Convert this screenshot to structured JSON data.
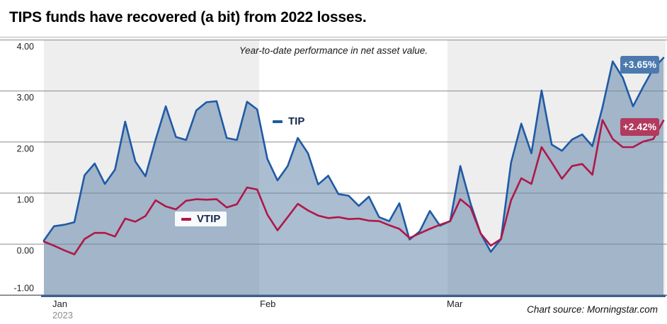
{
  "source_note": "Chart source: Morningstar.com",
  "colors": {
    "tip_line": "#1f5aa5",
    "tip_fill": "rgba(100,134,171,0.55)",
    "vtip_line": "#b01747",
    "tip_badge_bg": "#4d7aae",
    "vtip_badge_bg": "#b23a5e",
    "band_bg": "#eeeeee",
    "gridline": "#8a8a8a",
    "title_rule": "#b3b3b3",
    "axis_line": "#3c5f8c",
    "axis_label": "#222222",
    "year_label": "#8c8c8c",
    "legend_text": "#14294e"
  },
  "chart_data": {
    "type": "area",
    "title": "TIPS funds have recovered (a bit) from 2022 losses.",
    "subtitle": "Year-to-date performance in net asset value.",
    "x_tick_labels": [
      "Jan",
      "Feb",
      "Mar"
    ],
    "x_year_label": "2023",
    "y_tick_labels": [
      "4.00",
      "3.00",
      "2.00",
      "1.00",
      "0.00",
      "-1.00"
    ],
    "y_tick_values": [
      4,
      3,
      2,
      1,
      0,
      -1
    ],
    "ylim": [
      -1,
      4
    ],
    "grid": true,
    "legend_position": "inline",
    "series": [
      {
        "name": "TIP",
        "style": "area",
        "color": "#1f5aa5",
        "end_label": "+3.65%",
        "values": [
          0.07,
          0.35,
          0.38,
          0.43,
          1.35,
          1.58,
          1.18,
          1.46,
          2.4,
          1.62,
          1.33,
          2.05,
          2.7,
          2.1,
          2.04,
          2.62,
          2.78,
          2.8,
          2.08,
          2.04,
          2.79,
          2.64,
          1.67,
          1.25,
          1.53,
          2.08,
          1.78,
          1.17,
          1.34,
          0.98,
          0.95,
          0.75,
          0.93,
          0.53,
          0.45,
          0.8,
          0.09,
          0.25,
          0.65,
          0.36,
          0.45,
          1.53,
          0.8,
          0.21,
          -0.15,
          0.1,
          1.6,
          2.36,
          1.78,
          3.01,
          1.95,
          1.83,
          2.05,
          2.15,
          1.92,
          2.68,
          3.58,
          3.26,
          2.7,
          3.08,
          3.44,
          3.65
        ]
      },
      {
        "name": "VTIP",
        "style": "line",
        "color": "#b01747",
        "end_label": "+2.42%",
        "values": [
          0.05,
          -0.03,
          -0.12,
          -0.2,
          0.1,
          0.22,
          0.22,
          0.15,
          0.5,
          0.44,
          0.55,
          0.86,
          0.74,
          0.68,
          0.85,
          0.88,
          0.87,
          0.88,
          0.72,
          0.78,
          1.11,
          1.07,
          0.58,
          0.27,
          0.53,
          0.79,
          0.66,
          0.56,
          0.51,
          0.53,
          0.49,
          0.5,
          0.46,
          0.45,
          0.37,
          0.3,
          0.12,
          0.21,
          0.3,
          0.38,
          0.45,
          0.88,
          0.72,
          0.21,
          -0.03,
          0.1,
          0.86,
          1.29,
          1.18,
          1.9,
          1.6,
          1.28,
          1.53,
          1.57,
          1.36,
          2.43,
          2.06,
          1.9,
          1.9,
          2.01,
          2.06,
          2.42
        ]
      }
    ]
  }
}
